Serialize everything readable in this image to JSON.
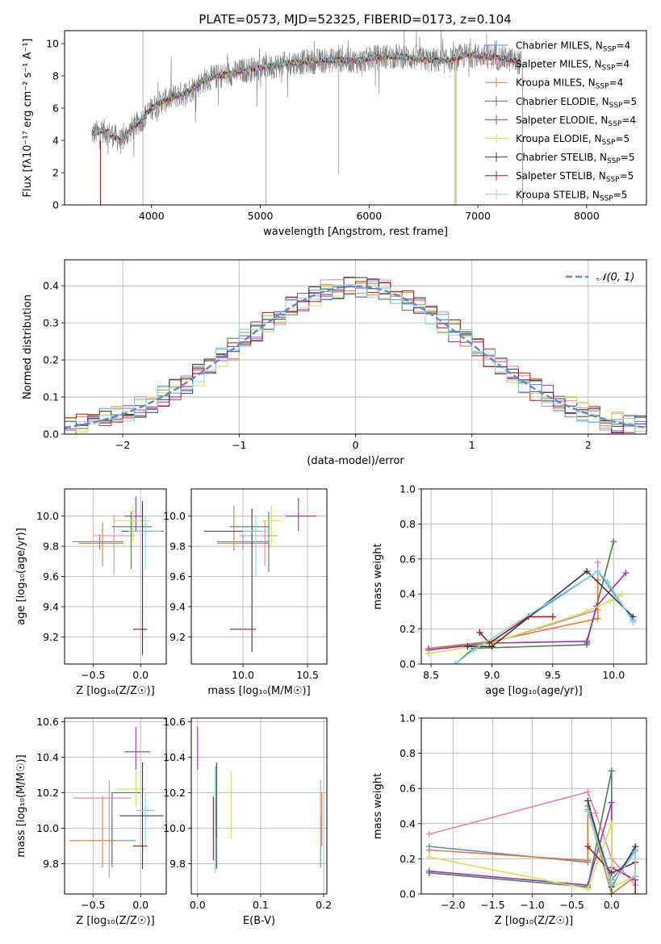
{
  "figure": {
    "title": "PLATE=0573, MJD=52325, FIBERID=0173, z=0.104"
  },
  "chart_data": [
    {
      "id": "spectrum",
      "type": "line",
      "xlabel": "wavelength [Angstrom, rest frame]",
      "ylabel": "Flux [fλ10⁻¹⁷ erg cm⁻² s⁻¹ A⁻¹]",
      "xlim": [
        3200,
        8550
      ],
      "ylim": [
        0,
        10.8
      ],
      "xticks": [
        4000,
        5000,
        6000,
        7000,
        8000
      ],
      "yticks": [
        0,
        2,
        4,
        6,
        8,
        10
      ],
      "grid": false,
      "legend_position": "top-right",
      "continuum_points": {
        "x": [
          3450,
          3550,
          3650,
          3720,
          3800,
          3900,
          4000,
          4100,
          4200,
          4300,
          4400,
          4500,
          4700,
          4900,
          5100,
          5300,
          5500,
          5700,
          5900,
          6100,
          6300,
          6500,
          6700,
          6900,
          7100,
          7300,
          7400
        ],
        "y": [
          4.4,
          4.6,
          4.3,
          3.9,
          4.6,
          5.2,
          6.0,
          6.4,
          6.7,
          6.9,
          7.3,
          7.8,
          8.1,
          8.4,
          8.6,
          8.8,
          8.9,
          9.0,
          8.9,
          9.2,
          9.2,
          9.0,
          8.9,
          9.3,
          9.2,
          9.0,
          8.8
        ]
      },
      "series": [
        {
          "name": "Chabrier MILES, N_SSP=4",
          "label_main": "Chabrier MILES, N",
          "label_sub": "SSP",
          "label_tail": "=4",
          "color": "#5b8dd6",
          "marker": "+"
        },
        {
          "name": "Salpeter MILES, N_SSP=4",
          "label_main": "Salpeter MILES, N",
          "label_sub": "SSP",
          "label_tail": "=4",
          "color": "#e97fb7",
          "marker": "+"
        },
        {
          "name": "Kroupa MILES, N_SSP=4",
          "label_main": "Kroupa MILES, N",
          "label_sub": "SSP",
          "label_tail": "=4",
          "color": "#e07b39",
          "marker": "+"
        },
        {
          "name": "Chabrier ELODIE, N_SSP=5",
          "label_main": "Chabrier ELODIE, N",
          "label_sub": "SSP",
          "label_tail": "=5",
          "color": "#4f7d4f",
          "marker": "+"
        },
        {
          "name": "Salpeter ELODIE, N_SSP=4",
          "label_main": "Salpeter ELODIE, N",
          "label_sub": "SSP",
          "label_tail": "=4",
          "color": "#9b30c0",
          "marker": "+"
        },
        {
          "name": "Kroupa ELODIE, N_SSP=5",
          "label_main": "Kroupa ELODIE, N",
          "label_sub": "SSP",
          "label_tail": "=5",
          "color": "#c7e84f",
          "marker": "+"
        },
        {
          "name": "Chabrier STELIB, N_SSP=5",
          "label_main": "Chabrier STELIB, N",
          "label_sub": "SSP",
          "label_tail": "=5",
          "color": "#3b3b3b",
          "marker": "+"
        },
        {
          "name": "Salpeter STELIB, N_SSP=5",
          "label_main": "Salpeter STELIB, N",
          "label_sub": "SSP",
          "label_tail": "=5",
          "color": "#a31818",
          "marker": "+"
        },
        {
          "name": "Kroupa STELIB, N_SSP=5",
          "label_main": "Kroupa STELIB, N",
          "label_sub": "SSP",
          "label_tail": "=5",
          "color": "#7fd6e0",
          "marker": "+"
        }
      ],
      "data_color": "#7f7f7f"
    },
    {
      "id": "residuals",
      "type": "area",
      "xlabel": "(data-model)/error",
      "ylabel": "Normed distribution",
      "xlim": [
        -2.5,
        2.5
      ],
      "ylim": [
        0,
        0.47
      ],
      "xticks": [
        -2,
        -1,
        0,
        1,
        2
      ],
      "yticks": [
        0.0,
        0.1,
        0.2,
        0.3,
        0.4
      ],
      "grid": true,
      "bin_width": 0.1,
      "legend": {
        "label": "𝒩(0, 1)",
        "position": "top-right",
        "color": "#5b8dd6",
        "style": "dashed"
      }
    },
    {
      "id": "age-vs-Z",
      "type": "scatter",
      "xlabel": "Z [log₁₀(Z/Z☉)]",
      "ylabel": "age  [log₁₀(age/yr)]",
      "xlim": [
        -0.8,
        0.27
      ],
      "ylim": [
        9.02,
        10.18
      ],
      "xticks": [
        -0.5,
        0.0
      ],
      "yticks": [
        9.2,
        9.4,
        9.6,
        9.8,
        10.0
      ],
      "grid": true,
      "points": [
        {
          "x": -0.43,
          "y": 9.83,
          "xerr": [
            0.29,
            0.25
          ],
          "yerr": [
            0.05,
            0.05
          ],
          "color": "#5b8dd6"
        },
        {
          "x": -0.28,
          "y": 9.87,
          "xerr": [
            0.22,
            0.22
          ],
          "yerr": [
            0.26,
            0.14
          ],
          "color": "#e97fb7"
        },
        {
          "x": -0.4,
          "y": 9.82,
          "xerr": [
            0.25,
            0.22
          ],
          "yerr": [
            0.15,
            0.14
          ],
          "color": "#e07b39"
        },
        {
          "x": -0.1,
          "y": 9.93,
          "xerr": [
            0.2,
            0.22
          ],
          "yerr": [
            0.28,
            0.1
          ],
          "color": "#4f7d4f"
        },
        {
          "x": -0.05,
          "y": 10.0,
          "xerr": [
            0.12,
            0.07
          ],
          "yerr": [
            0.1,
            0.13
          ],
          "color": "#9b30c0"
        },
        {
          "x": -0.08,
          "y": 9.97,
          "xerr": [
            0.21,
            0.18
          ],
          "yerr": [
            0.14,
            0.1
          ],
          "color": "#c7e84f"
        },
        {
          "x": 0.02,
          "y": 9.9,
          "xerr": [
            0.22,
            0.22
          ],
          "yerr": [
            0.82,
            0.2
          ],
          "color": "#3b3b3b"
        },
        {
          "x": -0.08,
          "y": 9.25,
          "xerr": [
            0.0,
            0.15
          ],
          "yerr": [
            0.0,
            0.0
          ],
          "color": "#a31818"
        },
        {
          "x": 0.05,
          "y": 9.9,
          "xerr": [
            0.18,
            0.17
          ],
          "yerr": [
            0.25,
            0.1
          ],
          "color": "#7fd6e0"
        }
      ]
    },
    {
      "id": "age-vs-mass",
      "type": "scatter",
      "xlabel": "mass [log₁₀(M/M☉)]",
      "ylabel": "",
      "xlim": [
        9.6,
        10.65
      ],
      "ylim": [
        9.02,
        10.18
      ],
      "xticks": [
        10.0,
        10.5
      ],
      "yticks": [
        9.2,
        9.4,
        9.6,
        9.8,
        10.0
      ],
      "grid": true,
      "points": [
        {
          "x": 10.0,
          "y": 9.83,
          "xerr": [
            0.2,
            0.2
          ],
          "yerr": [
            0.05,
            0.05
          ],
          "color": "#5b8dd6"
        },
        {
          "x": 10.17,
          "y": 9.87,
          "xerr": [
            0.2,
            0.1
          ],
          "yerr": [
            0.2,
            0.1
          ],
          "color": "#e97fb7"
        },
        {
          "x": 9.93,
          "y": 9.82,
          "xerr": [
            0.13,
            0.27
          ],
          "yerr": [
            0.05,
            0.25
          ],
          "color": "#e07b39"
        },
        {
          "x": 10.2,
          "y": 9.93,
          "xerr": [
            0.3,
            0.0
          ],
          "yerr": [
            0.3,
            0.1
          ],
          "color": "#4f7d4f"
        },
        {
          "x": 10.43,
          "y": 10.0,
          "xerr": [
            0.1,
            0.14
          ],
          "yerr": [
            0.1,
            0.12
          ],
          "color": "#9b30c0"
        },
        {
          "x": 10.22,
          "y": 9.97,
          "xerr": [
            0.07,
            0.07
          ],
          "yerr": [
            0.17,
            0.1
          ],
          "color": "#c7e84f"
        },
        {
          "x": 10.07,
          "y": 9.9,
          "xerr": [
            0.37,
            0.06
          ],
          "yerr": [
            0.8,
            0.15
          ],
          "color": "#3b3b3b"
        },
        {
          "x": 9.9,
          "y": 9.25,
          "xerr": [
            0.0,
            0.2
          ],
          "yerr": [
            0.0,
            0.0
          ],
          "color": "#a31818"
        },
        {
          "x": 10.1,
          "y": 9.9,
          "xerr": [
            0.1,
            0.1
          ],
          "yerr": [
            0.3,
            0.1
          ],
          "color": "#7fd6e0"
        }
      ]
    },
    {
      "id": "mass-weight-vs-age",
      "type": "line",
      "xlabel": "age  [log₁₀(age/yr)]",
      "ylabel": "mass weight",
      "xlim": [
        8.42,
        10.27
      ],
      "ylim": [
        0,
        1
      ],
      "xticks": [
        8.5,
        9.0,
        9.5,
        10.0
      ],
      "yticks": [
        0.0,
        0.2,
        0.4,
        0.6,
        0.8,
        1.0
      ],
      "grid": true,
      "series": [
        {
          "name": "Chabrier MILES",
          "color": "#5b8dd6",
          "x": [
            8.48,
            9.0,
            9.87,
            10.16
          ],
          "y": [
            0.08,
            0.13,
            0.53,
            0.25
          ]
        },
        {
          "name": "Salpeter MILES",
          "color": "#e97fb7",
          "x": [
            8.48,
            9.0,
            9.87,
            9.87
          ],
          "y": [
            0.06,
            0.12,
            0.31,
            0.58
          ]
        },
        {
          "name": "Kroupa MILES",
          "color": "#e07b39",
          "x": [
            8.48,
            9.0,
            9.87,
            9.87
          ],
          "y": [
            0.09,
            0.13,
            0.26,
            0.48
          ]
        },
        {
          "name": "Chabrier ELODIE",
          "color": "#4f7d4f",
          "x": [
            8.7,
            8.85,
            9.78,
            9.78,
            10.0
          ],
          "y": [
            0.0,
            0.09,
            0.11,
            0.12,
            0.7
          ]
        },
        {
          "name": "Salpeter ELODIE",
          "color": "#9b30c0",
          "x": [
            8.48,
            9.0,
            9.78,
            9.86,
            10.1
          ],
          "y": [
            0.08,
            0.12,
            0.13,
            0.33,
            0.52
          ]
        },
        {
          "name": "Kroupa ELODIE",
          "color": "#c7e84f",
          "x": [
            8.48,
            9.0,
            9.78,
            9.97,
            10.07
          ],
          "y": [
            0.06,
            0.12,
            0.3,
            0.36,
            0.4
          ]
        },
        {
          "name": "Chabrier STELIB",
          "color": "#3b3b3b",
          "x": [
            8.8,
            9.0,
            9.78,
            10.16
          ],
          "y": [
            0.1,
            0.1,
            0.53,
            0.27
          ]
        },
        {
          "name": "Salpeter STELIB",
          "color": "#a31818",
          "x": [
            8.9,
            8.98,
            9.3,
            9.5
          ],
          "y": [
            0.18,
            0.12,
            0.27,
            0.27
          ]
        },
        {
          "name": "Kroupa STELIB",
          "color": "#7fd6e0",
          "x": [
            8.7,
            8.85,
            9.87,
            9.95,
            10.16
          ],
          "y": [
            0.0,
            0.08,
            0.53,
            0.47,
            0.24
          ]
        }
      ]
    },
    {
      "id": "mass-vs-Z",
      "type": "scatter",
      "xlabel": "Z [log₁₀(Z/Z☉)]",
      "ylabel": "mass [log₁₀(M/M☉)]",
      "xlim": [
        -0.8,
        0.27
      ],
      "ylim": [
        9.63,
        10.62
      ],
      "xticks": [
        -0.5,
        0.0
      ],
      "yticks": [
        9.8,
        10.0,
        10.2,
        10.4,
        10.6
      ],
      "grid": true,
      "points": [
        {
          "x": -0.3,
          "y": 9.93,
          "xerr": [
            0.43,
            0.25
          ],
          "yerr": [
            0.15,
            0.15
          ],
          "color": "#5b8dd6"
        },
        {
          "x": -0.33,
          "y": 10.17,
          "xerr": [
            0.38,
            0.23
          ],
          "yerr": [
            0.45,
            0.1
          ],
          "color": "#e97fb7"
        },
        {
          "x": -0.4,
          "y": 9.93,
          "xerr": [
            0.35,
            0.23
          ],
          "yerr": [
            0.15,
            0.25
          ],
          "color": "#e07b39"
        },
        {
          "x": -0.3,
          "y": 10.2,
          "xerr": [
            0.0,
            0.3
          ],
          "yerr": [
            0.4,
            0.0
          ],
          "color": "#4f7d4f"
        },
        {
          "x": -0.05,
          "y": 10.43,
          "xerr": [
            0.12,
            0.15
          ],
          "yerr": [
            0.1,
            0.14
          ],
          "color": "#9b30c0"
        },
        {
          "x": -0.05,
          "y": 10.22,
          "xerr": [
            0.2,
            0.1
          ],
          "yerr": [
            0.1,
            0.1
          ],
          "color": "#c7e84f"
        },
        {
          "x": 0.02,
          "y": 10.07,
          "xerr": [
            0.24,
            0.22
          ],
          "yerr": [
            0.3,
            0.3
          ],
          "color": "#3b3b3b"
        },
        {
          "x": -0.08,
          "y": 9.9,
          "xerr": [
            0.0,
            0.15
          ],
          "yerr": [
            0.0,
            0.0
          ],
          "color": "#a31818"
        },
        {
          "x": 0.05,
          "y": 10.1,
          "xerr": [
            0.1,
            0.1
          ],
          "yerr": [
            0.2,
            0.1
          ],
          "color": "#7fd6e0"
        }
      ]
    },
    {
      "id": "mass-vs-ebv",
      "type": "scatter",
      "xlabel": "E(B-V)",
      "ylabel": "",
      "xlim": [
        -0.01,
        0.205
      ],
      "ylim": [
        9.63,
        10.62
      ],
      "xticks": [
        0.0,
        0.1,
        0.2
      ],
      "yticks": [
        9.8,
        10.0,
        10.2,
        10.4,
        10.6
      ],
      "grid": true,
      "points": [
        {
          "x": 0.195,
          "y": 9.93,
          "yerr": [
            0.15,
            0.15
          ],
          "color": "#5b8dd6"
        },
        {
          "x": 0.195,
          "y": 10.17,
          "yerr": [
            0.1,
            0.1
          ],
          "color": "#e97fb7"
        },
        {
          "x": 0.197,
          "y": 10.05,
          "yerr": [
            0.15,
            0.15
          ],
          "color": "#e07b39"
        },
        {
          "x": 0.03,
          "y": 10.15,
          "yerr": [
            0.2,
            0.2
          ],
          "color": "#4f7d4f"
        },
        {
          "x": 0.0,
          "y": 10.45,
          "yerr": [
            0.12,
            0.12
          ],
          "color": "#9b30c0"
        },
        {
          "x": 0.053,
          "y": 10.13,
          "yerr": [
            0.19,
            0.19
          ],
          "color": "#c7e84f"
        },
        {
          "x": 0.03,
          "y": 10.07,
          "yerr": [
            0.3,
            0.3
          ],
          "color": "#3b3b3b"
        },
        {
          "x": 0.025,
          "y": 10.0,
          "yerr": [
            0.18,
            0.18
          ],
          "color": "#a31818"
        },
        {
          "x": 0.028,
          "y": 10.05,
          "yerr": [
            0.3,
            0.3
          ],
          "color": "#7fd6e0"
        }
      ]
    },
    {
      "id": "mass-weight-vs-Z",
      "type": "line",
      "xlabel": "Z [log₁₀(Z/Z☉)]",
      "ylabel": "mass weight",
      "xlim": [
        -2.4,
        0.44
      ],
      "ylim": [
        0,
        1
      ],
      "xticks": [
        -2.0,
        -1.5,
        -1.0,
        -0.5,
        0.0
      ],
      "yticks": [
        0.0,
        0.2,
        0.4,
        0.6,
        0.8,
        1.0
      ],
      "grid": true,
      "series": [
        {
          "name": "Chabrier MILES",
          "color": "#5b8dd6",
          "x": [
            -2.3,
            -0.3,
            -0.3,
            0.0,
            0.3
          ],
          "y": [
            0.27,
            0.18,
            0.5,
            0.08,
            0.25
          ]
        },
        {
          "name": "Salpeter MILES",
          "color": "#e97fb7",
          "x": [
            -2.3,
            -0.3,
            -0.2,
            0.0,
            0.3
          ],
          "y": [
            0.34,
            0.58,
            0.46,
            0.2,
            0.05
          ]
        },
        {
          "name": "Kroupa MILES",
          "color": "#e07b39",
          "x": [
            -2.3,
            -0.3,
            -0.3,
            0.0,
            0.3
          ],
          "y": [
            0.25,
            0.19,
            0.48,
            0.0,
            0.1
          ]
        },
        {
          "name": "Chabrier ELODIE",
          "color": "#4f7d4f",
          "x": [
            -2.3,
            -0.3,
            0.0,
            0.0
          ],
          "y": [
            0.12,
            0.04,
            0.7,
            0.0
          ]
        },
        {
          "name": "Salpeter ELODIE",
          "color": "#9b30c0",
          "x": [
            -2.3,
            -0.3,
            0.0,
            0.0,
            0.3
          ],
          "y": [
            0.13,
            0.05,
            0.52,
            0.15,
            0.08
          ]
        },
        {
          "name": "Kroupa ELODIE",
          "color": "#c7e84f",
          "x": [
            -2.3,
            -0.3,
            0.0,
            0.0,
            0.3
          ],
          "y": [
            0.21,
            0.03,
            0.4,
            0.04,
            0.1
          ]
        },
        {
          "name": "Chabrier STELIB",
          "color": "#3b3b3b",
          "x": [
            -0.3,
            0.0,
            0.3,
            0.3
          ],
          "y": [
            0.53,
            0.04,
            0.27,
            0.1
          ]
        },
        {
          "name": "Salpeter STELIB",
          "color": "#a31818",
          "x": [
            -0.3,
            0.0,
            0.3,
            0.3
          ],
          "y": [
            0.27,
            0.12,
            0.18,
            0.0
          ]
        },
        {
          "name": "Kroupa STELIB",
          "color": "#7fd6e0",
          "x": [
            -0.3,
            0.0,
            0.3,
            0.3
          ],
          "y": [
            0.47,
            0.05,
            0.24,
            0.1
          ]
        }
      ]
    }
  ]
}
